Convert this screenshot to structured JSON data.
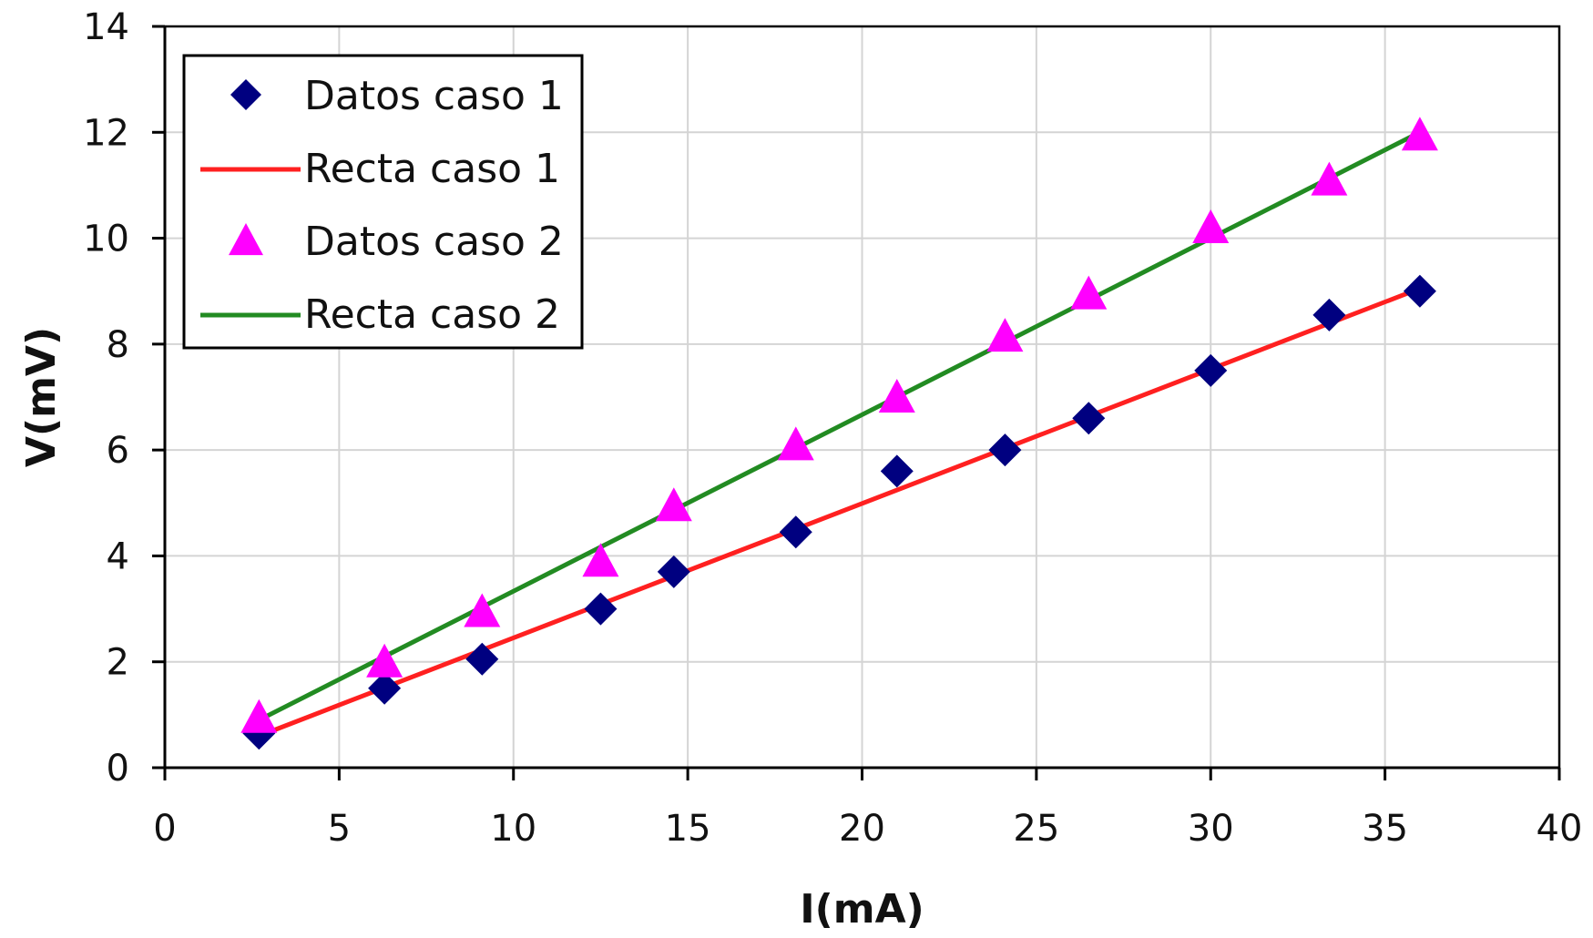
{
  "chart_data": {
    "type": "scatter",
    "xlabel": "I(mA)",
    "ylabel": "V(mV)",
    "xlim": [
      0,
      40
    ],
    "ylim": [
      0,
      14
    ],
    "xticks": [
      0,
      5,
      10,
      15,
      20,
      25,
      30,
      35,
      40
    ],
    "yticks": [
      0,
      2,
      4,
      6,
      8,
      10,
      12,
      14
    ],
    "xtick_labels": [
      "0",
      "5",
      "10",
      "15",
      "20",
      "25",
      "30",
      "35",
      "40"
    ],
    "ytick_labels": [
      "0",
      "2",
      "4",
      "6",
      "8",
      "10",
      "12",
      "14"
    ],
    "grid": true,
    "legend_position": "top-left",
    "series": [
      {
        "name": "Datos caso 1",
        "kind": "points",
        "marker": "diamond",
        "color": "#000080",
        "x": [
          2.7,
          6.3,
          9.1,
          12.5,
          14.6,
          18.1,
          21.0,
          24.1,
          26.5,
          30.0,
          33.4,
          36.0
        ],
        "y": [
          0.65,
          1.5,
          2.05,
          3.0,
          3.7,
          4.45,
          5.6,
          6.0,
          6.6,
          7.5,
          8.55,
          9.0
        ]
      },
      {
        "name": "Recta caso 1",
        "kind": "line",
        "color": "#ff2020",
        "x": [
          2.7,
          36.0
        ],
        "y": [
          0.6,
          9.05
        ]
      },
      {
        "name": "Datos caso 2",
        "kind": "points",
        "marker": "triangle",
        "color": "#ff00ff",
        "x": [
          2.7,
          6.3,
          9.1,
          12.5,
          14.6,
          18.1,
          21.0,
          24.1,
          26.5,
          30.0,
          33.4,
          36.0
        ],
        "y": [
          0.95,
          2.0,
          2.95,
          3.9,
          4.95,
          6.1,
          7.0,
          8.15,
          8.95,
          10.2,
          11.1,
          11.95
        ]
      },
      {
        "name": "Recta caso 2",
        "kind": "line",
        "color": "#228b22",
        "x": [
          2.7,
          36.0
        ],
        "y": [
          0.9,
          12.0
        ]
      }
    ]
  }
}
